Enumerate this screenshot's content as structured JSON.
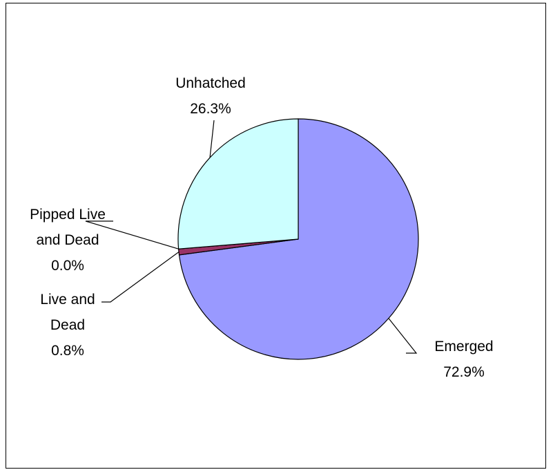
{
  "chart_data": {
    "type": "pie",
    "title": "",
    "start_angle_deg": 90,
    "direction": "clockwise",
    "slices": [
      {
        "label_lines": [
          "Emerged"
        ],
        "value_text": "72.9%",
        "value": 72.9,
        "color": "#9999ff"
      },
      {
        "label_lines": [
          "Live and",
          "Dead"
        ],
        "value_text": "0.8%",
        "value": 0.8,
        "color": "#993366"
      },
      {
        "label_lines": [
          "Pipped Live",
          "and Dead"
        ],
        "value_text": "0.0%",
        "value": 0.0,
        "color": "#993366"
      },
      {
        "label_lines": [
          "Unhatched"
        ],
        "value_text": "26.3%",
        "value": 26.3,
        "color": "#ccffff"
      }
    ]
  }
}
